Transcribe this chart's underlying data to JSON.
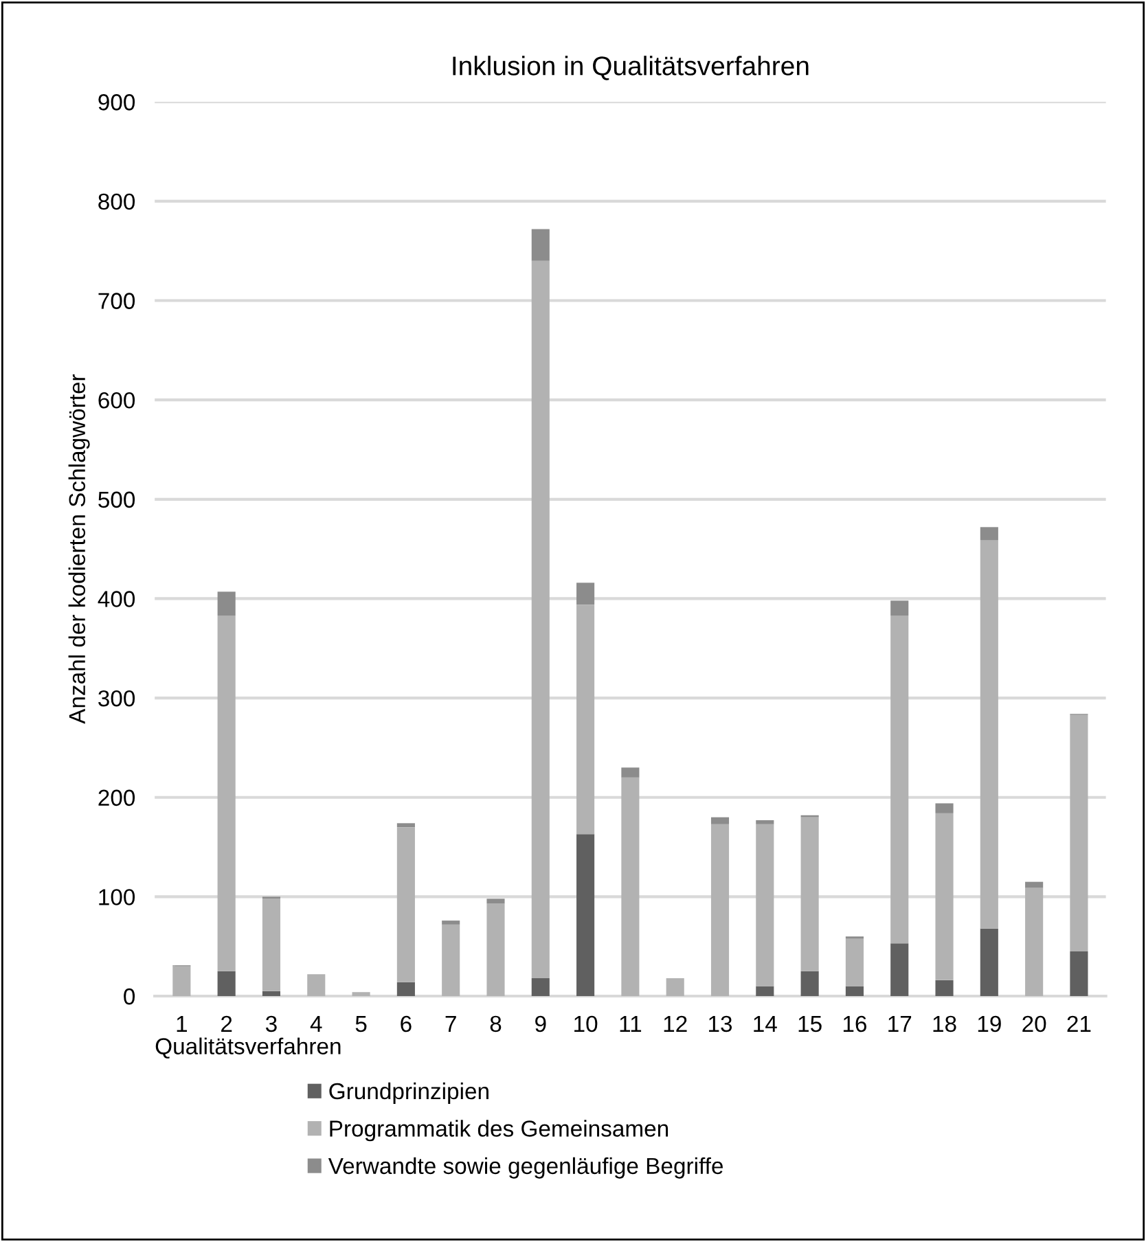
{
  "chart_data": {
    "type": "bar",
    "title": "Inklusion in Qualitätsverfahren",
    "xlabel": "Qualitätsverfahren",
    "ylabel": "Anzahl der kodierten Schlagwörter",
    "categories": [
      "1",
      "2",
      "3",
      "4",
      "5",
      "6",
      "7",
      "8",
      "9",
      "10",
      "11",
      "12",
      "13",
      "14",
      "15",
      "16",
      "17",
      "18",
      "19",
      "20",
      "21"
    ],
    "stacked": true,
    "ylim": [
      0,
      900
    ],
    "yticks": [
      0,
      100,
      200,
      300,
      400,
      500,
      600,
      700,
      800,
      900
    ],
    "grid": "y",
    "legend": "bottom",
    "series": [
      {
        "name": "Grundprinzipien",
        "color": "#606060",
        "values": [
          0,
          25,
          5,
          0,
          0,
          14,
          0,
          0,
          18,
          163,
          0,
          0,
          0,
          10,
          25,
          10,
          53,
          16,
          68,
          0,
          45
        ]
      },
      {
        "name": "Programmatik des Gemeinsamen",
        "color": "#b2b2b2",
        "values": [
          30,
          358,
          93,
          22,
          4,
          156,
          72,
          93,
          722,
          231,
          220,
          18,
          173,
          163,
          155,
          48,
          330,
          168,
          391,
          109,
          238
        ]
      },
      {
        "name": "Verwandte sowie gegenläufige Begriffe",
        "color": "#8c8c8c",
        "values": [
          1,
          24,
          2,
          0,
          0,
          4,
          4,
          5,
          32,
          22,
          10,
          0,
          7,
          4,
          2,
          2,
          15,
          10,
          13,
          6,
          1
        ]
      }
    ]
  }
}
